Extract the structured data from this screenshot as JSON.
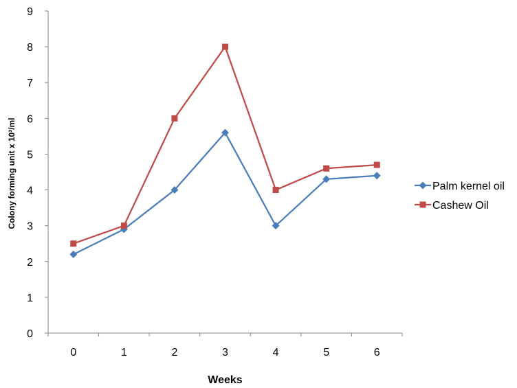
{
  "chart_data": {
    "type": "line",
    "x": [
      "0",
      "1",
      "2",
      "3",
      "4",
      "5",
      "6"
    ],
    "xlabel": "Weeks",
    "ylabel": "Colony forming unit x 10³/ml",
    "ylim": [
      0,
      9
    ],
    "yticks": [
      "0",
      "1",
      "2",
      "3",
      "4",
      "5",
      "6",
      "7",
      "8",
      "9"
    ],
    "grid": false,
    "legend_position": "right",
    "series": [
      {
        "name": "Palm kernel oil",
        "values": [
          2.2,
          2.9,
          4.0,
          5.6,
          3.0,
          4.3,
          4.4
        ],
        "color": "#4a7ebb",
        "marker": "diamond"
      },
      {
        "name": "Cashew Oil",
        "values": [
          2.5,
          3.0,
          6.0,
          8.0,
          4.0,
          4.6,
          4.7
        ],
        "color": "#be4b48",
        "marker": "square"
      }
    ]
  }
}
